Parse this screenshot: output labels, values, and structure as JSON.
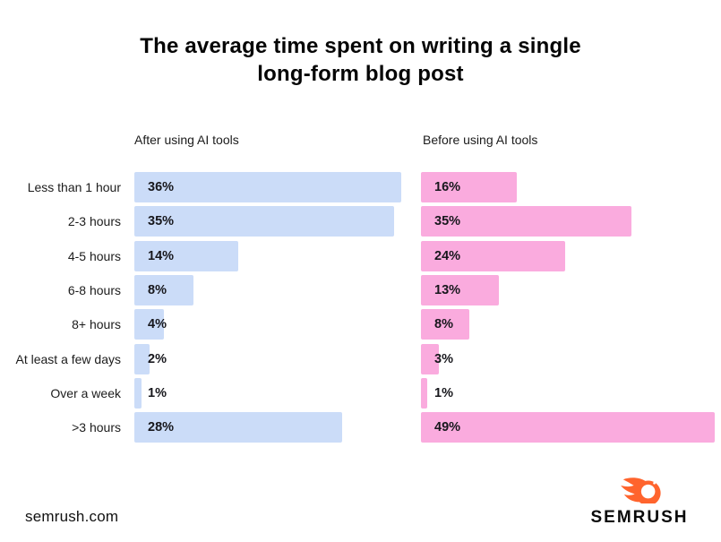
{
  "title_lines": [
    "The average time spent on writing a single",
    "long-form blog post"
  ],
  "chart_data": {
    "type": "bar",
    "orientation": "horizontal",
    "title": "The average time spent on writing a single long-form blog post",
    "categories": [
      "Less than 1 hour",
      "2-3 hours",
      "4-5 hours",
      "6-8 hours",
      "8+ hours",
      "At least a few days",
      "Over a week",
      ">3 hours"
    ],
    "series": [
      {
        "name": "After using AI tools",
        "color": "#CBDCF8",
        "values": [
          36,
          35,
          14,
          8,
          4,
          2,
          1,
          28
        ]
      },
      {
        "name": "Before using AI tools",
        "color": "#FAABDE",
        "values": [
          16,
          35,
          24,
          13,
          8,
          3,
          1,
          49
        ]
      }
    ],
    "value_suffix": "%",
    "value_labels_position": "inside-left of bars, outside for tiny bars",
    "grid": false,
    "legend_position": "column headers above each bar panel",
    "xlim_after_panel_percent": [
      0,
      37
    ],
    "xlim_before_panel_percent": [
      0,
      50
    ]
  },
  "footer": {
    "site": "semrush.com",
    "brand": "SEMRUSH"
  },
  "colors": {
    "after_bar": "#CBDCF8",
    "before_bar": "#FAABDE",
    "title_text": "#050505",
    "label_text": "#1c1c1c",
    "value_text": "#17171c",
    "brand_orange": "#FF642D",
    "background": "#FFFFFF"
  }
}
